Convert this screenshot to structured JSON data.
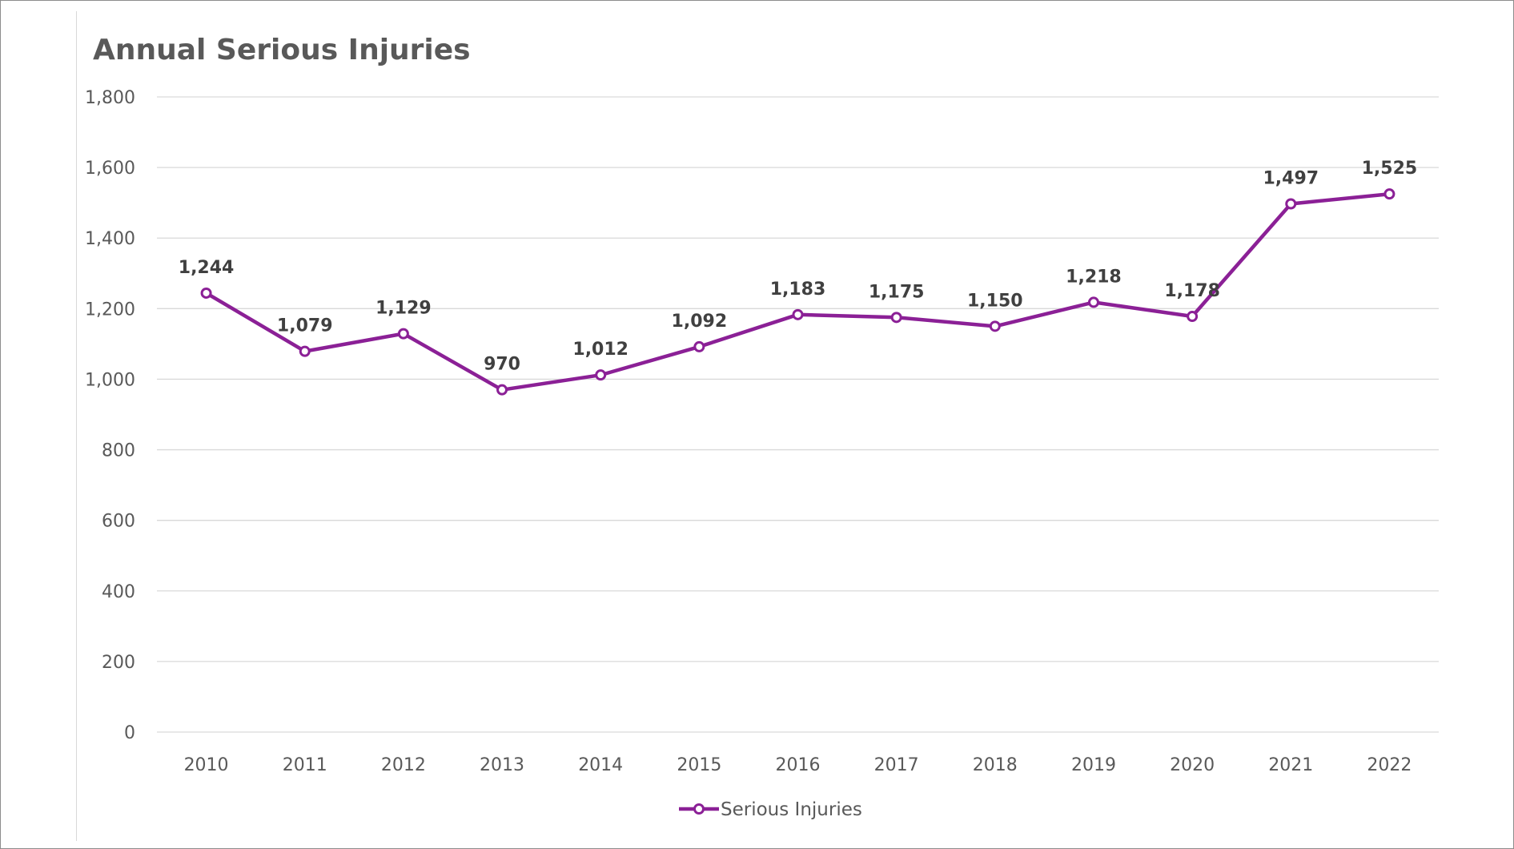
{
  "chart_data": {
    "type": "line",
    "title": "Annual Serious Injuries",
    "xlabel": "",
    "ylabel": "",
    "categories": [
      "2010",
      "2011",
      "2012",
      "2013",
      "2014",
      "2015",
      "2016",
      "2017",
      "2018",
      "2019",
      "2020",
      "2021",
      "2022"
    ],
    "series": [
      {
        "name": "Serious Injuries",
        "values": [
          1244,
          1079,
          1129,
          970,
          1012,
          1092,
          1183,
          1175,
          1150,
          1218,
          1178,
          1497,
          1525
        ],
        "data_labels": [
          "1,244",
          "1,079",
          "1,129",
          "970",
          "1,012",
          "1,092",
          "1,183",
          "1,175",
          "1,150",
          "1,218",
          "1,178",
          "1,497",
          "1,525"
        ],
        "color": "#8B2096",
        "marker": "hollow-circle"
      }
    ],
    "ylim": [
      0,
      1800
    ],
    "yticks": [
      0,
      200,
      400,
      600,
      800,
      1000,
      1200,
      1400,
      1600,
      1800
    ],
    "ytick_labels": [
      "0",
      "200",
      "400",
      "600",
      "800",
      "1,000",
      "1,200",
      "1,400",
      "1,600",
      "1,800"
    ],
    "grid": true,
    "legend": "bottom"
  },
  "colors": {
    "series": "#8B2096",
    "grid": "#d9d9d9",
    "text": "#595959",
    "data_label": "#404040"
  }
}
